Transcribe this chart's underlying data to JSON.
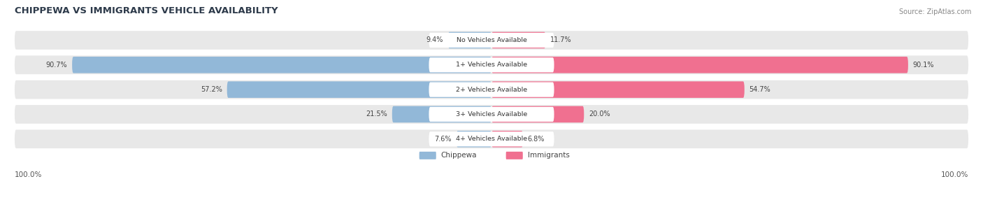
{
  "title": "CHIPPEWA VS IMMIGRANTS VEHICLE AVAILABILITY",
  "source": "Source: ZipAtlas.com",
  "categories": [
    "No Vehicles Available",
    "1+ Vehicles Available",
    "2+ Vehicles Available",
    "3+ Vehicles Available",
    "4+ Vehicles Available"
  ],
  "chippewa": [
    9.4,
    90.7,
    57.2,
    21.5,
    7.6
  ],
  "immigrants": [
    11.7,
    90.1,
    54.7,
    20.0,
    6.8
  ],
  "max_val": 100.0,
  "chippewa_color": "#92b8d8",
  "immigrants_color": "#f07090",
  "bg_row_color": "#e8e8e8",
  "bg_color": "#ffffff",
  "label_100_left": "100.0%",
  "label_100_right": "100.0%",
  "legend_chippewa": "Chippewa",
  "legend_immigrants": "Immigrants",
  "title_color": "#2d3a4a",
  "source_color": "#888888",
  "value_color": "#444444"
}
